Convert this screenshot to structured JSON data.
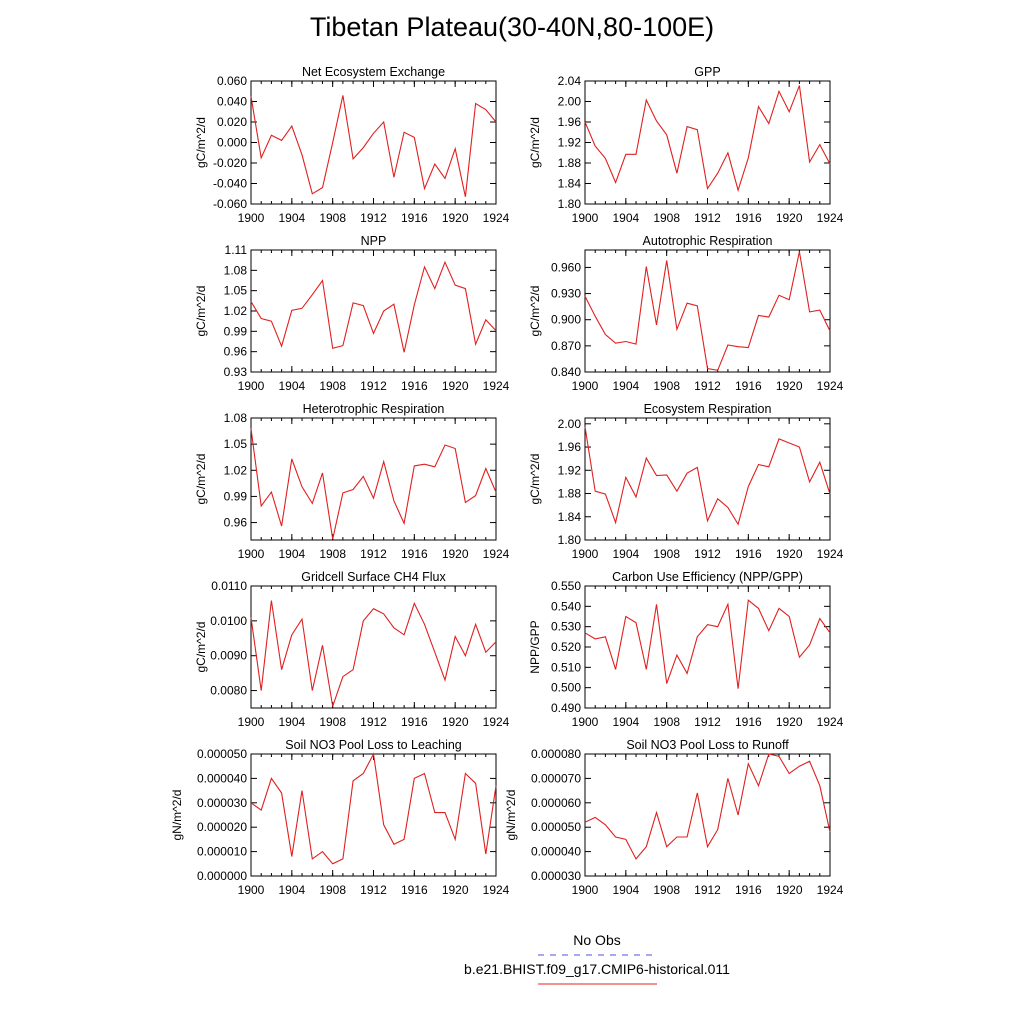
{
  "title": "Tibetan Plateau(30-40N,80-100E)",
  "legend": {
    "items": [
      {
        "label": "No Obs",
        "color": "#5050e0",
        "style": "dashed"
      },
      {
        "label": "b.e21.BHIST.f09_g17.CMIP6-historical.011",
        "color": "#e02020",
        "style": "solid"
      }
    ]
  },
  "chart_data": [
    {
      "type": "line",
      "title": "Net Ecosystem Exchange",
      "ylabel": "gC/m^2/d",
      "xlabel": "",
      "xlim": [
        1900,
        1924
      ],
      "ylim": [
        -0.06,
        0.06
      ],
      "xticks": [
        "1900",
        "1904",
        "1908",
        "1912",
        "1916",
        "1920",
        "1924"
      ],
      "yticks": [
        "-0.060",
        "-0.040",
        "-0.020",
        "0.000",
        "0.020",
        "0.040",
        "0.060"
      ],
      "x": [
        1900,
        1901,
        1902,
        1903,
        1904,
        1905,
        1906,
        1907,
        1908,
        1909,
        1910,
        1911,
        1912,
        1913,
        1914,
        1915,
        1916,
        1917,
        1918,
        1919,
        1920,
        1921,
        1922,
        1923,
        1924
      ],
      "values": [
        0.045,
        -0.015,
        0.007,
        0.002,
        0.016,
        -0.012,
        -0.05,
        -0.044,
        0.0,
        0.046,
        -0.016,
        -0.005,
        0.009,
        0.02,
        -0.034,
        0.01,
        0.005,
        -0.045,
        -0.021,
        -0.035,
        -0.006,
        -0.053,
        0.038,
        0.032,
        0.02
      ]
    },
    {
      "type": "line",
      "title": "GPP",
      "ylabel": "gC/m^2/d",
      "xlabel": "",
      "xlim": [
        1900,
        1924
      ],
      "ylim": [
        1.8,
        2.04
      ],
      "xticks": [
        "1900",
        "1904",
        "1908",
        "1912",
        "1916",
        "1920",
        "1924"
      ],
      "yticks": [
        "1.80",
        "1.84",
        "1.88",
        "1.92",
        "1.96",
        "2.00",
        "2.04"
      ],
      "x": [
        1900,
        1901,
        1902,
        1903,
        1904,
        1905,
        1906,
        1907,
        1908,
        1909,
        1910,
        1911,
        1912,
        1913,
        1914,
        1915,
        1916,
        1917,
        1918,
        1919,
        1920,
        1921,
        1922,
        1923,
        1924
      ],
      "values": [
        1.96,
        1.913,
        1.889,
        1.842,
        1.897,
        1.897,
        2.003,
        1.962,
        1.935,
        1.86,
        1.951,
        1.945,
        1.83,
        1.86,
        1.9,
        1.827,
        1.89,
        1.99,
        1.957,
        2.02,
        1.98,
        2.031,
        1.882,
        1.916,
        1.878
      ]
    },
    {
      "type": "line",
      "title": "NPP",
      "ylabel": "gC/m^2/d",
      "xlabel": "",
      "xlim": [
        1900,
        1924
      ],
      "ylim": [
        0.93,
        1.11
      ],
      "xticks": [
        "1900",
        "1904",
        "1908",
        "1912",
        "1916",
        "1920",
        "1924"
      ],
      "yticks": [
        "0.93",
        "0.96",
        "0.99",
        "1.02",
        "1.05",
        "1.08",
        "1.11"
      ],
      "x": [
        1900,
        1901,
        1902,
        1903,
        1904,
        1905,
        1906,
        1907,
        1908,
        1909,
        1910,
        1911,
        1912,
        1913,
        1914,
        1915,
        1916,
        1917,
        1918,
        1919,
        1920,
        1921,
        1922,
        1923,
        1924
      ],
      "values": [
        1.034,
        1.009,
        1.005,
        0.968,
        1.021,
        1.024,
        1.044,
        1.065,
        0.965,
        0.969,
        1.032,
        1.028,
        0.987,
        1.02,
        1.03,
        0.959,
        1.029,
        1.085,
        1.053,
        1.092,
        1.058,
        1.053,
        0.971,
        1.007,
        0.991
      ]
    },
    {
      "type": "line",
      "title": "Autotrophic Respiration",
      "ylabel": "gC/m^2/d",
      "xlabel": "",
      "xlim": [
        1900,
        1924
      ],
      "ylim": [
        0.84,
        0.98
      ],
      "xticks": [
        "1900",
        "1904",
        "1908",
        "1912",
        "1916",
        "1920",
        "1924"
      ],
      "yticks": [
        "0.840",
        "0.870",
        "0.900",
        "0.930",
        "0.960"
      ],
      "x": [
        1900,
        1901,
        1902,
        1903,
        1904,
        1905,
        1906,
        1907,
        1908,
        1909,
        1910,
        1911,
        1912,
        1913,
        1914,
        1915,
        1916,
        1917,
        1918,
        1919,
        1920,
        1921,
        1922,
        1923,
        1924
      ],
      "values": [
        0.927,
        0.904,
        0.883,
        0.873,
        0.875,
        0.872,
        0.961,
        0.894,
        0.968,
        0.889,
        0.919,
        0.916,
        0.844,
        0.842,
        0.871,
        0.869,
        0.868,
        0.905,
        0.903,
        0.928,
        0.923,
        0.978,
        0.909,
        0.911,
        0.887
      ]
    },
    {
      "type": "line",
      "title": "Heterotrophic Respiration",
      "ylabel": "gC/m^2/d",
      "xlabel": "",
      "xlim": [
        1900,
        1924
      ],
      "ylim": [
        0.94,
        1.08
      ],
      "xticks": [
        "1900",
        "1904",
        "1908",
        "1912",
        "1916",
        "1920",
        "1924"
      ],
      "yticks": [
        "0.96",
        "0.99",
        "1.02",
        "1.05",
        "1.08"
      ],
      "x": [
        1900,
        1901,
        1902,
        1903,
        1904,
        1905,
        1906,
        1907,
        1908,
        1909,
        1910,
        1911,
        1912,
        1913,
        1914,
        1915,
        1916,
        1917,
        1918,
        1919,
        1920,
        1921,
        1922,
        1923,
        1924
      ],
      "values": [
        1.068,
        0.979,
        0.995,
        0.956,
        1.033,
        1.001,
        0.982,
        1.017,
        0.941,
        0.994,
        0.998,
        1.013,
        0.988,
        1.03,
        0.985,
        0.959,
        1.025,
        1.027,
        1.024,
        1.049,
        1.045,
        0.983,
        0.991,
        1.022,
        0.995
      ]
    },
    {
      "type": "line",
      "title": "Ecosystem Respiration",
      "ylabel": "gC/m^2/d",
      "xlabel": "",
      "xlim": [
        1900,
        1924
      ],
      "ylim": [
        1.8,
        2.01
      ],
      "xticks": [
        "1900",
        "1904",
        "1908",
        "1912",
        "1916",
        "1920",
        "1924"
      ],
      "yticks": [
        "1.80",
        "1.84",
        "1.88",
        "1.92",
        "1.96",
        "2.00"
      ],
      "x": [
        1900,
        1901,
        1902,
        1903,
        1904,
        1905,
        1906,
        1907,
        1908,
        1909,
        1910,
        1911,
        1912,
        1913,
        1914,
        1915,
        1916,
        1917,
        1918,
        1919,
        1920,
        1921,
        1922,
        1923,
        1924
      ],
      "values": [
        1.995,
        1.884,
        1.879,
        1.83,
        1.908,
        1.874,
        1.941,
        1.911,
        1.912,
        1.884,
        1.915,
        1.925,
        1.833,
        1.871,
        1.856,
        1.827,
        1.892,
        1.93,
        1.926,
        1.974,
        1.967,
        1.96,
        1.9,
        1.934,
        1.879
      ]
    },
    {
      "type": "line",
      "title": "Gridcell Surface CH4 Flux",
      "ylabel": "gC/m^2/d",
      "xlabel": "",
      "xlim": [
        1900,
        1924
      ],
      "ylim": [
        0.0075,
        0.011
      ],
      "xticks": [
        "1900",
        "1904",
        "1908",
        "1912",
        "1916",
        "1920",
        "1924"
      ],
      "yticks": [
        "0.0080",
        "0.0090",
        "0.0100",
        "0.0110"
      ],
      "x": [
        1900,
        1901,
        1902,
        1903,
        1904,
        1905,
        1906,
        1907,
        1908,
        1909,
        1910,
        1911,
        1912,
        1913,
        1914,
        1915,
        1916,
        1917,
        1918,
        1919,
        1920,
        1921,
        1922,
        1923,
        1924
      ],
      "values": [
        0.0101,
        0.008,
        0.01058,
        0.0086,
        0.0096,
        0.01005,
        0.008,
        0.0093,
        0.00755,
        0.0084,
        0.0086,
        0.01,
        0.01035,
        0.0102,
        0.0098,
        0.0096,
        0.0105,
        0.0099,
        0.0091,
        0.0083,
        0.00955,
        0.009,
        0.0099,
        0.0091,
        0.0094
      ]
    },
    {
      "type": "line",
      "title": "Carbon Use Efficiency (NPP/GPP)",
      "ylabel": "NPP/GPP",
      "xlabel": "",
      "xlim": [
        1900,
        1924
      ],
      "ylim": [
        0.49,
        0.55
      ],
      "xticks": [
        "1900",
        "1904",
        "1908",
        "1912",
        "1916",
        "1920",
        "1924"
      ],
      "yticks": [
        "0.490",
        "0.500",
        "0.510",
        "0.520",
        "0.530",
        "0.540",
        "0.550"
      ],
      "x": [
        1900,
        1901,
        1902,
        1903,
        1904,
        1905,
        1906,
        1907,
        1908,
        1909,
        1910,
        1911,
        1912,
        1913,
        1914,
        1915,
        1916,
        1917,
        1918,
        1919,
        1920,
        1921,
        1922,
        1923,
        1924
      ],
      "values": [
        0.527,
        0.524,
        0.525,
        0.509,
        0.535,
        0.532,
        0.509,
        0.541,
        0.502,
        0.516,
        0.507,
        0.525,
        0.531,
        0.53,
        0.541,
        0.4995,
        0.543,
        0.539,
        0.528,
        0.539,
        0.535,
        0.515,
        0.521,
        0.534,
        0.527
      ]
    },
    {
      "type": "line",
      "title": "Soil NO3 Pool Loss to Leaching",
      "ylabel": "gN/m^2/d",
      "xlabel": "",
      "xlim": [
        1900,
        1924
      ],
      "ylim": [
        0.0,
        5e-05
      ],
      "xticks": [
        "1900",
        "1904",
        "1908",
        "1912",
        "1916",
        "1920",
        "1924"
      ],
      "yticks": [
        "0.000000",
        "0.000010",
        "0.000020",
        "0.000030",
        "0.000040",
        "0.000050"
      ],
      "x": [
        1900,
        1901,
        1902,
        1903,
        1904,
        1905,
        1906,
        1907,
        1908,
        1909,
        1910,
        1911,
        1912,
        1913,
        1914,
        1915,
        1916,
        1917,
        1918,
        1919,
        1920,
        1921,
        1922,
        1923,
        1924
      ],
      "values": [
        3e-05,
        2.7e-05,
        4e-05,
        3.4e-05,
        8e-06,
        3.5e-05,
        7e-06,
        1e-05,
        5e-06,
        7e-06,
        3.9e-05,
        4.2e-05,
        5e-05,
        2.1e-05,
        1.3e-05,
        1.5e-05,
        4e-05,
        4.2e-05,
        2.6e-05,
        2.6e-05,
        1.5e-05,
        4.2e-05,
        3.8e-05,
        9e-06,
        3.7e-05
      ]
    },
    {
      "type": "line",
      "title": "Soil NO3 Pool Loss to Runoff",
      "ylabel": "gN/m^2/d",
      "xlabel": "",
      "xlim": [
        1900,
        1924
      ],
      "ylim": [
        3e-05,
        8e-05
      ],
      "xticks": [
        "1900",
        "1904",
        "1908",
        "1912",
        "1916",
        "1920",
        "1924"
      ],
      "yticks": [
        "0.000030",
        "0.000040",
        "0.000050",
        "0.000060",
        "0.000070",
        "0.000080"
      ],
      "x": [
        1900,
        1901,
        1902,
        1903,
        1904,
        1905,
        1906,
        1907,
        1908,
        1909,
        1910,
        1911,
        1912,
        1913,
        1914,
        1915,
        1916,
        1917,
        1918,
        1919,
        1920,
        1921,
        1922,
        1923,
        1924
      ],
      "values": [
        5.2e-05,
        5.4e-05,
        5.1e-05,
        4.6e-05,
        4.5e-05,
        3.7e-05,
        4.2e-05,
        5.6e-05,
        4.2e-05,
        4.6e-05,
        4.6e-05,
        6.4e-05,
        4.2e-05,
        4.9e-05,
        7e-05,
        5.5e-05,
        7.6e-05,
        6.7e-05,
        8e-05,
        7.9e-05,
        7.2e-05,
        7.5e-05,
        7.7e-05,
        6.7e-05,
        4.8e-05
      ]
    }
  ]
}
